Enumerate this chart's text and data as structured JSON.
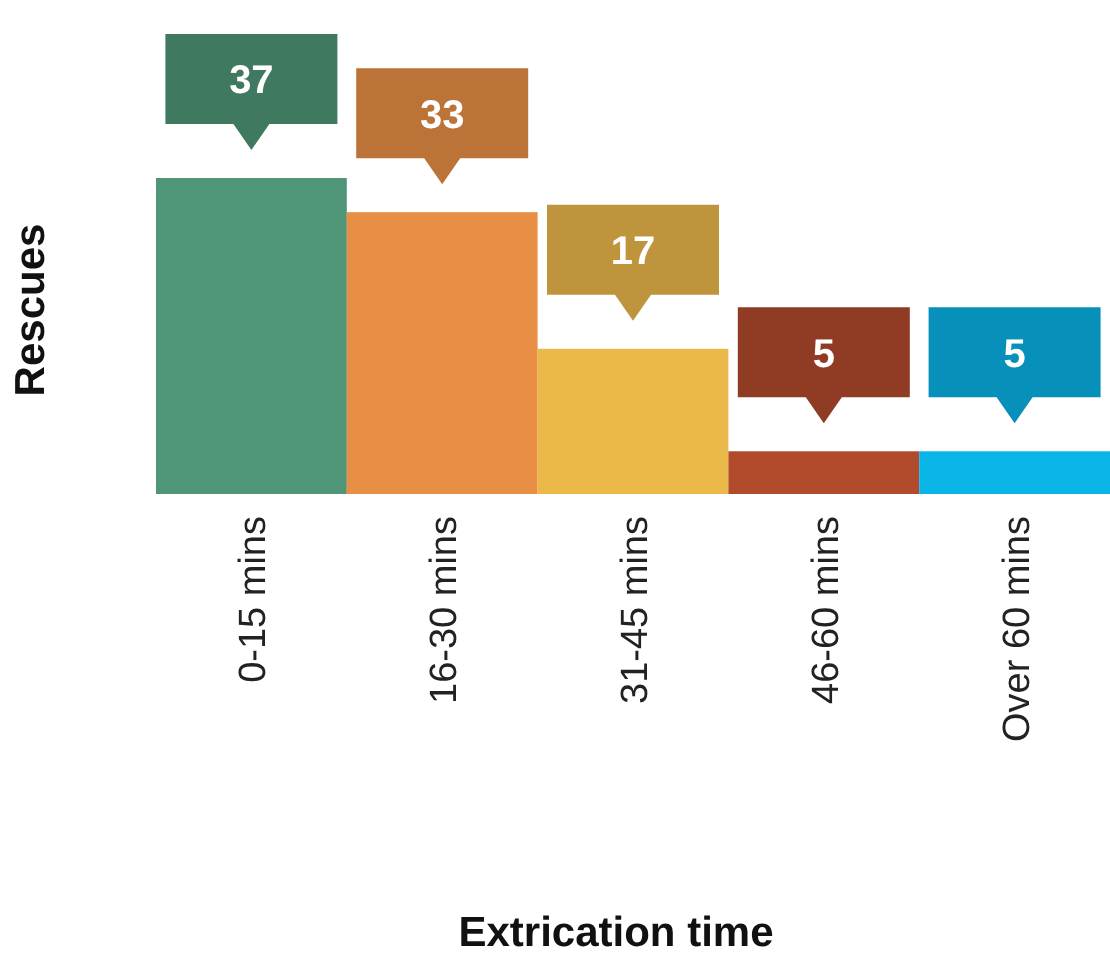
{
  "chart_data": {
    "type": "bar",
    "xlabel": "Extrication time",
    "ylabel": "Rescues",
    "categories": [
      "0-15 mins",
      "16-30 mins",
      "31-45 mins",
      "46-60 mins",
      "Over 60 mins"
    ],
    "values": [
      37,
      33,
      17,
      5,
      5
    ],
    "colors": [
      "#4e9677",
      "#e88f45",
      "#ebb84a",
      "#b24a2c",
      "#09b4e6"
    ],
    "data_labels": true
  }
}
